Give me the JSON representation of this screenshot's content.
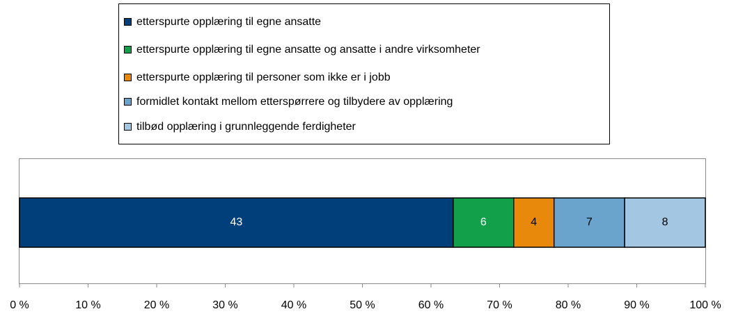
{
  "chart_data": {
    "type": "bar",
    "orientation": "horizontal",
    "stacked_percent": true,
    "categories": [
      null
    ],
    "series": [
      {
        "name": "etterspurte opplæring til egne ansatte",
        "color": "#003f7a",
        "label_color": "#ffffff",
        "values": [
          43
        ]
      },
      {
        "name": "etterspurte opplæring til egne ansatte og ansatte i andre virksomheter",
        "color": "#13a04a",
        "label_color": "#ffffff",
        "values": [
          6
        ]
      },
      {
        "name": "etterspurte opplæring til personer som ikke er i jobb",
        "color": "#e8890c",
        "label_color": "#000000",
        "values": [
          4
        ]
      },
      {
        "name": "formidlet kontakt mellom etterspørrere og tilbydere av opplæring",
        "color": "#6aa3cc",
        "label_color": "#000000",
        "values": [
          7
        ]
      },
      {
        "name": "tilbød opplæring i grunnleggende ferdigheter",
        "color": "#a3c6e2",
        "label_color": "#000000",
        "values": [
          8
        ]
      }
    ],
    "xlim": [
      0,
      100
    ],
    "xticks": [
      {
        "value": 0,
        "label": "0 %"
      },
      {
        "value": 10,
        "label": "10 %"
      },
      {
        "value": 20,
        "label": "20 %"
      },
      {
        "value": 30,
        "label": "30 %"
      },
      {
        "value": 40,
        "label": "40 %"
      },
      {
        "value": 50,
        "label": "50 %"
      },
      {
        "value": 60,
        "label": "60 %"
      },
      {
        "value": 70,
        "label": "70 %"
      },
      {
        "value": 80,
        "label": "80 %"
      },
      {
        "value": 90,
        "label": "90 %"
      },
      {
        "value": 100,
        "label": "100 %"
      }
    ],
    "legend": "top"
  }
}
